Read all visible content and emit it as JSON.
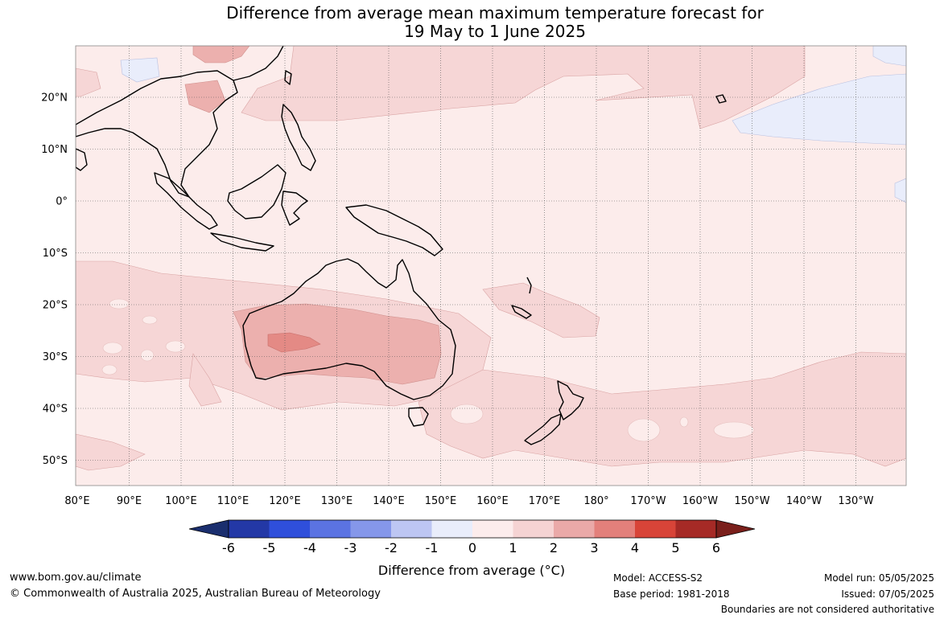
{
  "title_line1": "Difference from average mean maximum temperature forecast for",
  "title_line2": "19 May to 1 June 2025",
  "lon_ticks": [
    "80°E",
    "90°E",
    "100°E",
    "110°E",
    "120°E",
    "130°E",
    "140°E",
    "150°E",
    "160°E",
    "170°E",
    "180°",
    "170°W",
    "160°W",
    "150°W",
    "140°W",
    "130°W"
  ],
  "lat_ticks": [
    "20°N",
    "10°N",
    "0°",
    "10°S",
    "20°S",
    "30°S",
    "40°S",
    "50°S"
  ],
  "colorbar": {
    "label": "Difference from average (°C)",
    "ticks": [
      "-6",
      "-5",
      "-4",
      "-3",
      "-2",
      "-1",
      "0",
      "1",
      "2",
      "3",
      "4",
      "5",
      "6"
    ],
    "colors": [
      "#1a2e6e",
      "#2338a6",
      "#2f4fdb",
      "#5b73e2",
      "#8597ea",
      "#bdc6f3",
      "#e9edfb",
      "#fcecec",
      "#f5d3d3",
      "#eaa9a8",
      "#e3807b",
      "#d84438",
      "#a62a26",
      "#7a1f1b"
    ]
  },
  "map": {
    "ocean_color": "#fceceb",
    "warm1_color": "#f6d6d6",
    "warm2_color": "#ecb0ae",
    "warm3_color": "#e48a85",
    "cool_color": "#e9edfb"
  },
  "footer": {
    "website": "www.bom.gov.au/climate",
    "copyright": "© Commonwealth of Australia 2025, Australian Bureau of Meteorology",
    "model": "Model: ACCESS-S2",
    "base_period": "Base period: 1981-2018",
    "model_run": "Model run: 05/05/2025",
    "issued": "Issued: 07/05/2025",
    "disclaimer": "Boundaries are not considered authoritative"
  }
}
